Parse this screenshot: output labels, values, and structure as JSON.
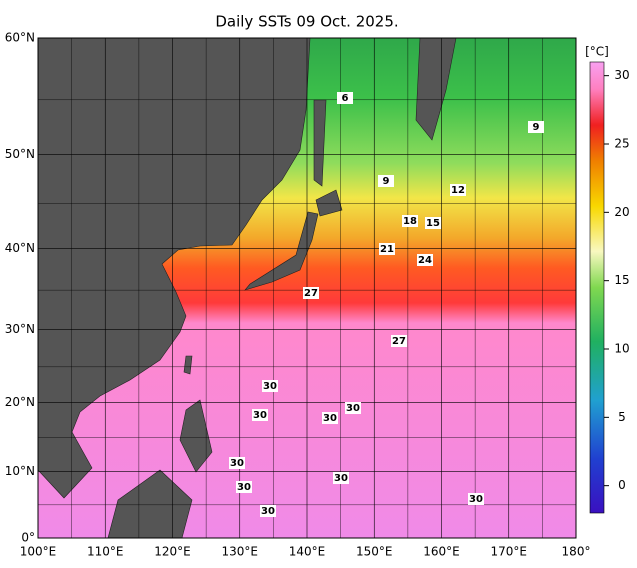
{
  "title": "Daily SSTs 09 Oct. 2025.",
  "lat_ticks": [
    {
      "value": 60,
      "label": "60°N"
    },
    {
      "value": 50,
      "label": "50°N"
    },
    {
      "value": 40,
      "label": "40°N"
    },
    {
      "value": 30,
      "label": "30°N"
    },
    {
      "value": 20,
      "label": "20°N"
    },
    {
      "value": 10,
      "label": "10°N"
    },
    {
      "value": 0,
      "label": "0°"
    }
  ],
  "lon_ticks": [
    {
      "value": 100,
      "label": "100°E"
    },
    {
      "value": 110,
      "label": "110°E"
    },
    {
      "value": 120,
      "label": "120°E"
    },
    {
      "value": 130,
      "label": "130°E"
    },
    {
      "value": 140,
      "label": "140°E"
    },
    {
      "value": 150,
      "label": "150°E"
    },
    {
      "value": 160,
      "label": "160°E"
    },
    {
      "value": 170,
      "label": "170°E"
    },
    {
      "value": 180,
      "label": "180°"
    }
  ],
  "colorbar": {
    "unit": "[°C]",
    "lim": [
      -2,
      31
    ],
    "ticks": [
      0,
      5,
      10,
      15,
      20,
      25,
      30
    ]
  },
  "contour_labels": [
    6,
    9,
    9,
    12,
    18,
    15,
    21,
    24,
    27,
    27,
    30,
    30,
    30,
    30,
    30,
    30,
    30,
    30,
    30
  ]
}
